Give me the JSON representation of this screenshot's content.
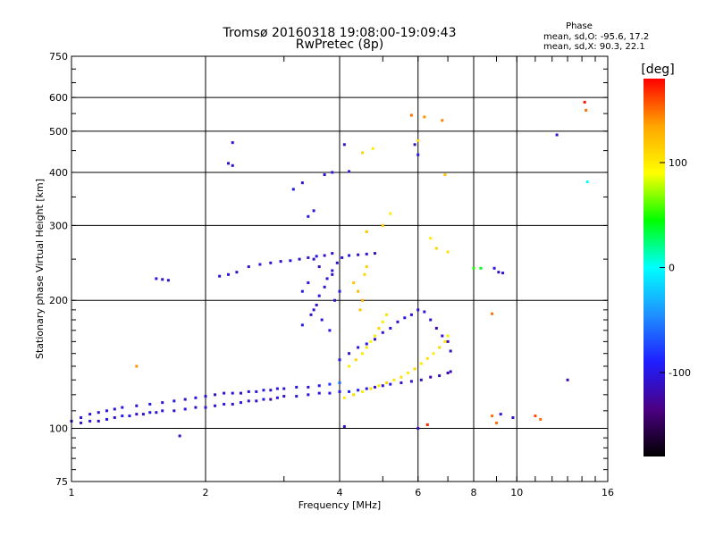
{
  "chart_data": {
    "type": "scatter",
    "title": "Tromsø 20160318 19:08:00-19:09:43",
    "subtitle": "RwPretec (8p)",
    "xlabel": "Frequency [MHz]",
    "ylabel": "Stationary phase Virtual Height [km]",
    "x_scale": "log",
    "y_scale": "log",
    "xlim": [
      1,
      16
    ],
    "ylim": [
      75,
      750
    ],
    "x_ticks": [
      1,
      2,
      4,
      6,
      8,
      10,
      16
    ],
    "x_tick_labels": [
      "1",
      "2",
      "4",
      "6",
      "8",
      "10",
      "16"
    ],
    "y_ticks": [
      75,
      100,
      200,
      300,
      400,
      500,
      600,
      750
    ],
    "y_tick_labels": [
      "75",
      "100",
      "200",
      "300",
      "400",
      "500",
      "600",
      "750"
    ],
    "grid": true,
    "phase_info": {
      "title": "Phase",
      "line_o": "mean, sd,O: -95.6, 17.2",
      "line_x": "mean, sd,X:  90.3, 22.1"
    },
    "colorbar": {
      "label": "[deg]",
      "range": [
        -180,
        180
      ],
      "ticks": [
        -100,
        0,
        100
      ],
      "tick_labels": [
        "-100",
        "0",
        "100"
      ],
      "colors": [
        "#000000",
        "#4b0082",
        "#1e1eff",
        "#1e90ff",
        "#00ffff",
        "#00ff00",
        "#ffff00",
        "#ffa500",
        "#ff0000"
      ]
    },
    "series": [
      {
        "values": [
          [
            1.0,
            104,
            -110
          ],
          [
            1.05,
            103,
            -105
          ],
          [
            1.1,
            104,
            -100
          ],
          [
            1.15,
            104,
            -115
          ],
          [
            1.2,
            105,
            -100
          ],
          [
            1.25,
            106,
            -110
          ],
          [
            1.3,
            107,
            -95
          ],
          [
            1.35,
            107,
            -100
          ],
          [
            1.4,
            108,
            -112
          ],
          [
            1.45,
            108,
            -105
          ],
          [
            1.5,
            109,
            -100
          ],
          [
            1.55,
            109,
            -110
          ],
          [
            1.6,
            110,
            -100
          ],
          [
            1.7,
            110,
            -108
          ],
          [
            1.8,
            111,
            -102
          ],
          [
            1.9,
            112,
            -110
          ],
          [
            2.0,
            112,
            -100
          ],
          [
            2.1,
            113,
            -105
          ],
          [
            2.2,
            114,
            -100
          ],
          [
            2.3,
            114,
            -108
          ],
          [
            2.4,
            115,
            -100
          ],
          [
            2.5,
            116,
            -105
          ],
          [
            2.6,
            116,
            -110
          ],
          [
            2.7,
            117,
            -100
          ],
          [
            2.8,
            117,
            -120
          ],
          [
            2.9,
            118,
            -100
          ],
          [
            3.0,
            119,
            -110
          ],
          [
            3.2,
            119,
            -100
          ],
          [
            3.4,
            120,
            -105
          ],
          [
            3.6,
            121,
            -100
          ],
          [
            3.8,
            121,
            -100
          ],
          [
            4.0,
            122,
            -95
          ],
          [
            4.2,
            122,
            -90
          ],
          [
            4.4,
            123,
            -95
          ],
          [
            4.6,
            124,
            -100
          ],
          [
            4.8,
            125,
            -110
          ],
          [
            5.0,
            126,
            -105
          ],
          [
            5.2,
            127,
            -100
          ],
          [
            5.5,
            128,
            -110
          ],
          [
            5.8,
            129,
            -105
          ],
          [
            6.1,
            130,
            -110
          ],
          [
            6.4,
            132,
            -120
          ],
          [
            6.7,
            133,
            -115
          ],
          [
            7.0,
            135,
            -120
          ],
          [
            7.1,
            136,
            -115
          ]
        ]
      },
      {
        "values": [
          [
            1.05,
            106,
            -100
          ],
          [
            1.1,
            108,
            -105
          ],
          [
            1.15,
            109,
            -110
          ],
          [
            1.2,
            110,
            -100
          ],
          [
            1.25,
            111,
            -105
          ],
          [
            1.3,
            112,
            -100
          ],
          [
            1.4,
            113,
            -110
          ],
          [
            1.5,
            114,
            -100
          ],
          [
            1.6,
            115,
            -105
          ],
          [
            1.7,
            116,
            -100
          ],
          [
            1.8,
            117,
            -110
          ],
          [
            1.9,
            118,
            -100
          ],
          [
            2.0,
            119,
            -105
          ],
          [
            2.1,
            120,
            -110
          ],
          [
            2.2,
            121,
            -100
          ],
          [
            2.3,
            121,
            -105
          ],
          [
            2.4,
            121,
            -110
          ],
          [
            2.5,
            122,
            -100
          ],
          [
            2.6,
            122,
            -105
          ],
          [
            2.7,
            123,
            -100
          ],
          [
            2.8,
            123,
            -110
          ],
          [
            2.9,
            124,
            -100
          ],
          [
            3.0,
            124,
            -105
          ],
          [
            3.2,
            125,
            -100
          ],
          [
            3.4,
            125,
            -105
          ],
          [
            3.6,
            126,
            -100
          ],
          [
            3.8,
            127,
            -80
          ],
          [
            4.0,
            128,
            -60
          ]
        ]
      },
      {
        "values": [
          [
            4.1,
            118,
            100
          ],
          [
            4.3,
            120,
            110
          ],
          [
            4.5,
            122,
            100
          ],
          [
            4.7,
            124,
            105
          ],
          [
            4.9,
            126,
            100
          ],
          [
            5.1,
            128,
            110
          ],
          [
            5.3,
            130,
            100
          ],
          [
            5.5,
            132,
            105
          ],
          [
            5.7,
            135,
            100
          ],
          [
            5.9,
            138,
            110
          ],
          [
            6.1,
            142,
            100
          ],
          [
            6.3,
            146,
            105
          ],
          [
            6.5,
            150,
            100
          ],
          [
            6.7,
            155,
            110
          ],
          [
            6.9,
            160,
            105
          ],
          [
            7.0,
            165,
            100
          ]
        ]
      },
      {
        "values": [
          [
            4.2,
            140,
            100
          ],
          [
            4.35,
            145,
            110
          ],
          [
            4.5,
            150,
            100
          ],
          [
            4.6,
            155,
            105
          ],
          [
            4.7,
            160,
            95
          ],
          [
            4.8,
            165,
            100
          ],
          [
            4.9,
            172,
            110
          ],
          [
            5.0,
            178,
            100
          ],
          [
            5.1,
            185,
            105
          ],
          [
            4.45,
            190,
            120
          ],
          [
            4.5,
            200,
            130
          ],
          [
            4.4,
            210,
            125
          ],
          [
            4.3,
            220,
            120
          ],
          [
            4.55,
            230,
            110
          ],
          [
            4.6,
            240,
            115
          ]
        ]
      },
      {
        "values": [
          [
            4.0,
            145,
            -100
          ],
          [
            4.2,
            150,
            -110
          ],
          [
            4.4,
            155,
            -105
          ],
          [
            4.6,
            158,
            -100
          ],
          [
            4.8,
            162,
            -110
          ],
          [
            5.0,
            168,
            -105
          ],
          [
            5.2,
            172,
            -100
          ],
          [
            5.4,
            178,
            -110
          ],
          [
            5.6,
            182,
            -100
          ],
          [
            5.8,
            185,
            -105
          ],
          [
            6.0,
            190,
            -110
          ],
          [
            6.2,
            188,
            -100
          ],
          [
            6.4,
            180,
            -105
          ],
          [
            6.6,
            172,
            -120
          ],
          [
            6.8,
            165,
            -110
          ],
          [
            7.0,
            160,
            -120
          ],
          [
            7.1,
            152,
            -115
          ]
        ]
      },
      {
        "values": [
          [
            3.3,
            175,
            -100
          ],
          [
            3.45,
            185,
            -110
          ],
          [
            3.55,
            195,
            -105
          ],
          [
            3.6,
            205,
            -100
          ],
          [
            3.7,
            215,
            -110
          ],
          [
            3.75,
            225,
            -105
          ],
          [
            3.85,
            235,
            -100
          ],
          [
            3.95,
            245,
            -110
          ],
          [
            4.05,
            252,
            -105
          ],
          [
            4.2,
            255,
            -100
          ],
          [
            4.4,
            256,
            -110
          ],
          [
            4.6,
            257,
            -105
          ],
          [
            4.8,
            258,
            -110
          ],
          [
            3.4,
            220,
            -105
          ],
          [
            3.3,
            210,
            -100
          ],
          [
            3.5,
            190,
            -110
          ],
          [
            3.65,
            180,
            -105
          ],
          [
            3.8,
            170,
            -100
          ],
          [
            3.9,
            200,
            -110
          ],
          [
            4.0,
            210,
            -100
          ],
          [
            3.85,
            230,
            -110
          ],
          [
            3.6,
            240,
            -115
          ],
          [
            3.5,
            250,
            -110
          ]
        ]
      },
      {
        "values": [
          [
            2.5,
            240,
            -105
          ],
          [
            2.65,
            243,
            -100
          ],
          [
            2.8,
            245,
            -110
          ],
          [
            2.95,
            247,
            -105
          ],
          [
            3.1,
            248,
            -100
          ],
          [
            3.25,
            250,
            -110
          ],
          [
            3.4,
            252,
            -105
          ],
          [
            3.55,
            254,
            -100
          ],
          [
            3.7,
            255,
            -110
          ],
          [
            3.85,
            258,
            -105
          ],
          [
            1.55,
            225,
            -100
          ],
          [
            1.6,
            224,
            -105
          ],
          [
            1.65,
            223,
            -110
          ],
          [
            2.15,
            228,
            -105
          ],
          [
            2.25,
            230,
            -100
          ],
          [
            2.35,
            233,
            -110
          ]
        ]
      },
      {
        "values": [
          [
            2.3,
            470,
            -100
          ],
          [
            2.25,
            420,
            -110
          ],
          [
            2.3,
            415,
            -105
          ],
          [
            3.15,
            365,
            -100
          ],
          [
            3.3,
            378,
            -105
          ],
          [
            3.4,
            315,
            -100
          ],
          [
            3.5,
            325,
            -110
          ],
          [
            3.7,
            395,
            -105
          ],
          [
            3.85,
            400,
            -100
          ],
          [
            4.1,
            465,
            -110
          ],
          [
            4.2,
            402,
            -105
          ],
          [
            4.5,
            445,
            110
          ],
          [
            4.75,
            455,
            100
          ],
          [
            4.6,
            290,
            120
          ],
          [
            5.0,
            300,
            115
          ],
          [
            5.2,
            320,
            100
          ],
          [
            5.8,
            545,
            150
          ],
          [
            6.2,
            540,
            140
          ],
          [
            6.8,
            530,
            145
          ],
          [
            6.0,
            475,
            110
          ],
          [
            6.9,
            395,
            120
          ],
          [
            6.4,
            280,
            100
          ],
          [
            6.6,
            265,
            110
          ],
          [
            7.0,
            260,
            105
          ],
          [
            5.9,
            465,
            -110
          ],
          [
            6.0,
            440,
            -100
          ],
          [
            8.0,
            238,
            50
          ],
          [
            8.3,
            238,
            40
          ],
          [
            8.9,
            238,
            -100
          ],
          [
            9.1,
            233,
            -110
          ],
          [
            9.3,
            232,
            -105
          ],
          [
            8.8,
            186,
            150
          ],
          [
            12.3,
            490,
            -105
          ],
          [
            14.2,
            585,
            175
          ],
          [
            14.3,
            560,
            150
          ],
          [
            14.4,
            380,
            0
          ],
          [
            13.0,
            130,
            -120
          ],
          [
            8.8,
            107,
            150
          ],
          [
            9.2,
            108,
            -100
          ],
          [
            9.8,
            106,
            -110
          ],
          [
            11.0,
            107,
            160
          ],
          [
            11.3,
            105,
            150
          ],
          [
            9.0,
            103,
            150
          ],
          [
            6.0,
            100,
            -110
          ],
          [
            6.3,
            102,
            170
          ],
          [
            1.75,
            96,
            -105
          ],
          [
            1.4,
            140,
            140
          ],
          [
            4.1,
            101,
            -110
          ]
        ]
      }
    ]
  }
}
